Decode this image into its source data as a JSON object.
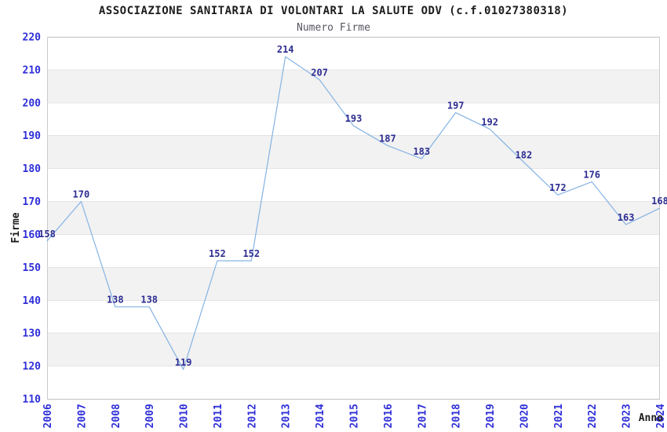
{
  "chart_data": {
    "type": "line",
    "title": "ASSOCIAZIONE SANITARIA DI VOLONTARI LA SALUTE ODV (c.f.01027380318)",
    "subtitle": "Numero Firme",
    "xlabel": "Anno",
    "ylabel": "Firme",
    "x": [
      "2006",
      "2007",
      "2008",
      "2009",
      "2010",
      "2011",
      "2012",
      "2013",
      "2014",
      "2015",
      "2016",
      "2017",
      "2018",
      "2019",
      "2020",
      "2021",
      "2022",
      "2023",
      "2024"
    ],
    "values": [
      158,
      170,
      138,
      138,
      119,
      152,
      152,
      214,
      207,
      193,
      187,
      183,
      197,
      192,
      182,
      172,
      176,
      163,
      168
    ],
    "ylim": [
      110,
      220
    ],
    "ytick_step": 10,
    "yticks": [
      110,
      120,
      130,
      140,
      150,
      160,
      170,
      180,
      190,
      200,
      210,
      220
    ],
    "grid": "horizontal-bands",
    "legend": "none",
    "data_labels_visible": true,
    "colors": {
      "line": "#85b3e4",
      "point_label": "#2c2c92",
      "tick_label": "#2e2ed8",
      "band_fill": "#f2f2f2",
      "grid_line": "#e4e4e4",
      "plot_border": "#cbcbcb",
      "title": "#1c1c1c",
      "subtitle": "#565660",
      "axis_title": "#1c1c1c",
      "background": "#ffffff"
    }
  }
}
